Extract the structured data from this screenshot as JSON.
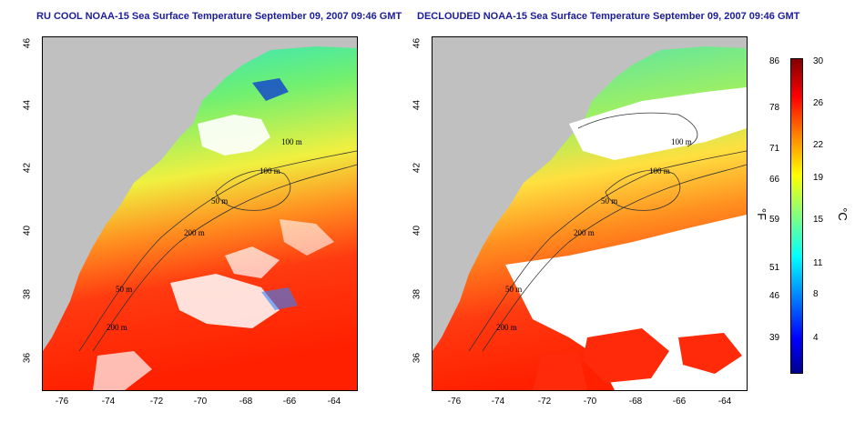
{
  "left_panel": {
    "title": "RU COOL NOAA-15 Sea Surface Temperature September 09, 2007 09:46 GMT"
  },
  "right_panel": {
    "title": "DECLOUDED NOAA-15 Sea Surface Temperature September 09, 2007 09:46 GMT"
  },
  "axes": {
    "x_ticks": [
      "-76",
      "-74",
      "-72",
      "-70",
      "-68",
      "-66",
      "-64"
    ],
    "y_ticks": [
      "46",
      "44",
      "42",
      "40",
      "38",
      "36"
    ]
  },
  "contour_labels": [
    "100 m",
    "100 m",
    "50 m",
    "200 m",
    "50 m",
    "200 m"
  ],
  "colorbar": {
    "unit_f": "°F",
    "unit_c": "°C",
    "fahrenheit": [
      "86",
      "78",
      "71",
      "66",
      "59",
      "51",
      "46",
      "39"
    ],
    "celsius": [
      "30",
      "26",
      "22",
      "19",
      "15",
      "11",
      "8",
      "4"
    ]
  },
  "colors": {
    "land": "#c0c0c0",
    "cloud": "#ffffff",
    "title": "#1c1c9a"
  }
}
